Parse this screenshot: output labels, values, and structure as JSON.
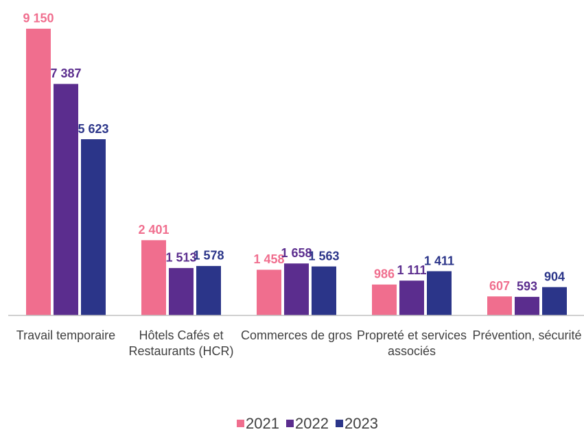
{
  "chart_data": {
    "type": "bar",
    "categories": [
      "Travail temporaire",
      "Hôtels Cafés et Restaurants (HCR)",
      "Commerces de gros",
      "Propreté et services associés",
      "Prévention, sécurité"
    ],
    "series": [
      {
        "name": "2021",
        "color": "#f06e8e",
        "values": [
          9150,
          2401,
          1458,
          986,
          607
        ],
        "value_labels": [
          "9 150",
          "2 401",
          "1 458",
          "986",
          "607"
        ]
      },
      {
        "name": "2022",
        "color": "#5b2d8e",
        "values": [
          7387,
          1513,
          1658,
          1111,
          593
        ],
        "value_labels": [
          "7 387",
          "1 513",
          "1 658",
          "1 111",
          "593"
        ]
      },
      {
        "name": "2023",
        "color": "#2b3589",
        "values": [
          5623,
          1578,
          1563,
          1411,
          904
        ],
        "value_labels": [
          "5 623",
          "1 578",
          "1 563",
          "1 411",
          "904"
        ]
      }
    ],
    "ylim": [
      0,
      10000
    ]
  }
}
